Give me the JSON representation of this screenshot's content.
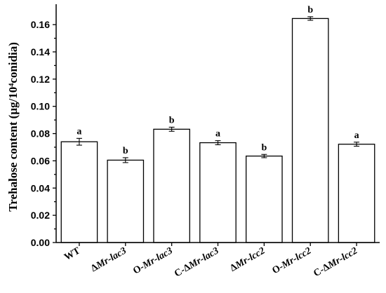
{
  "chart_data": {
    "type": "bar",
    "categories": [
      "WT",
      "ΔMr-lac3",
      "O-Mr-lac3",
      "C-ΔMr-lac3",
      "ΔMr-lcc2",
      "O-Mr-lcc2",
      "C-ΔMr-lcc2"
    ],
    "values": [
      0.074,
      0.0605,
      0.0832,
      0.0733,
      0.0635,
      0.1645,
      0.0722
    ],
    "errors": [
      0.0025,
      0.0018,
      0.0015,
      0.0015,
      0.0012,
      0.0013,
      0.0015
    ],
    "significance": [
      "a",
      "b",
      "b",
      "a",
      "b",
      "b",
      "a"
    ],
    "ylabel": "Trehalose content (μg/10⁴conidia)",
    "xlabel": "",
    "ylim": [
      0,
      0.175
    ],
    "yticks": [
      0.0,
      0.02,
      0.04,
      0.06,
      0.08,
      0.1,
      0.12,
      0.14,
      0.16
    ],
    "ytick_labels": [
      "0.00",
      "0.02",
      "0.04",
      "0.06",
      "0.08",
      "0.10",
      "0.12",
      "0.14",
      "0.16"
    ],
    "grid": false,
    "bar_fill": "#ffffff",
    "bar_stroke": "#000000"
  }
}
